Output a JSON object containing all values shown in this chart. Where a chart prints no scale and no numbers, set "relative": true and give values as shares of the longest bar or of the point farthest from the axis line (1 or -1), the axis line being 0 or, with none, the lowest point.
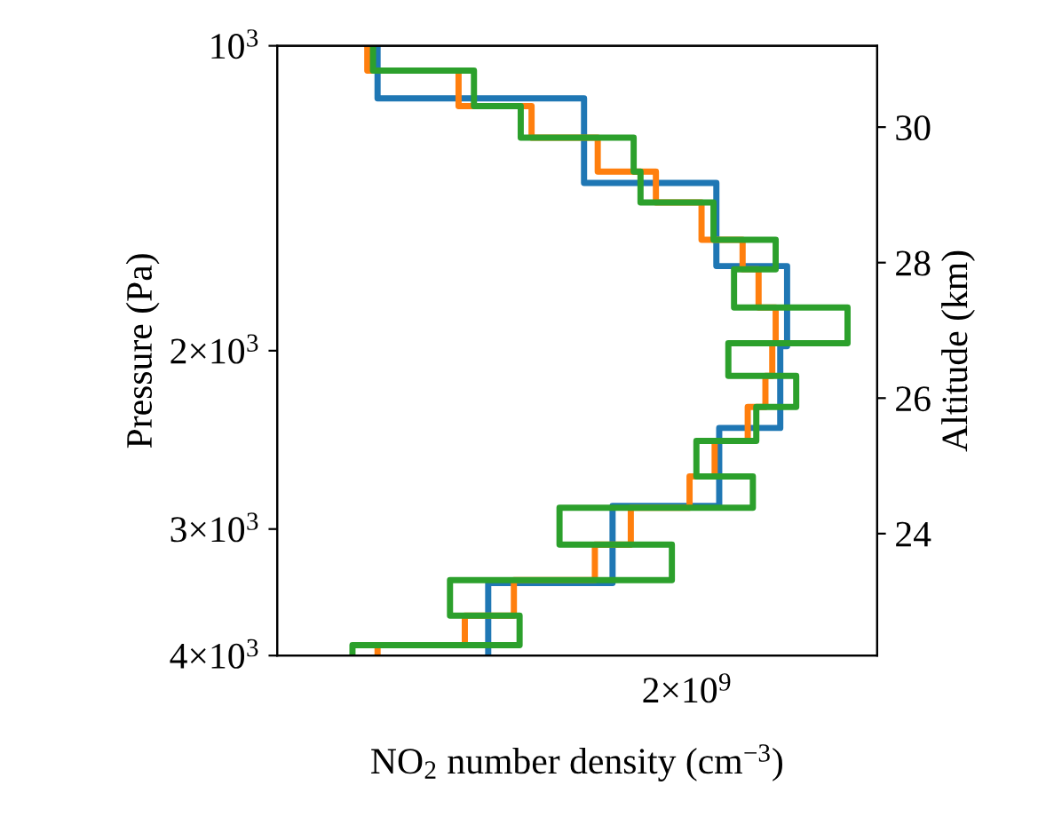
{
  "chart_data": {
    "type": "step",
    "orientation": "horizontal",
    "xlabel": "NO$_{2}$ number density (cm$^{−3}$)",
    "ylabel": "Pressure (Pa)",
    "y2label": "Altitude (km)",
    "relative": true,
    "log": "y",
    "annotations": [
      "2×10$^{9}$"
    ],
    "ylim": [
      4000,
      1000
    ],
    "yticks": [
      {
        "value": 1000,
        "label": "10$^{3}$"
      },
      {
        "value": 2000,
        "label": "2×10$^{3}$"
      },
      {
        "value": 3000,
        "label": "3×10$^{3}$"
      },
      {
        "value": 4000,
        "label": "4×10$^{3}$"
      }
    ],
    "y2lim": [
      22.2,
      31.2
    ],
    "y2ticks": [
      {
        "value": 24,
        "label": "24"
      },
      {
        "value": 26,
        "label": "26"
      },
      {
        "value": 28,
        "label": "28"
      },
      {
        "value": 30,
        "label": "30"
      }
    ],
    "grid": false,
    "series": [
      {
        "color": "#1f77b4",
        "values": [
          0.176,
          0.538,
          0.77,
          0.894,
          0.882,
          0.775,
          0.588,
          0.37,
          0.37
        ],
        "x": [
          1000,
          1127,
          1366,
          1650,
          1979,
          2384,
          2847,
          3392,
          4000
        ]
      },
      {
        "color": "#ff7f0e",
        "values": [
          0.158,
          0.318,
          0.446,
          0.562,
          0.664,
          0.744,
          0.816,
          0.844,
          0.874,
          0.868,
          0.856,
          0.825,
          0.767,
          0.723,
          0.62,
          0.557,
          0.415,
          0.329,
          0.176,
          0.176
        ],
        "x": [
          1000,
          1058,
          1147,
          1232,
          1331,
          1428,
          1554,
          1662,
          1813,
          1966,
          2118,
          2273,
          2455,
          2662,
          2858,
          3108,
          3370,
          3653,
          3906,
          4000
        ]
      },
      {
        "color": "#2ca02c",
        "values": [
          0.168,
          0.345,
          0.427,
          0.625,
          0.637,
          0.765,
          0.874,
          0.801,
          1,
          0.791,
          0.91,
          0.84,
          0.735,
          0.834,
          0.495,
          0.692,
          0.303,
          0.425,
          0.132,
          0.132
        ],
        "x": [
          1000,
          1058,
          1147,
          1232,
          1331,
          1428,
          1554,
          1662,
          1813,
          1966,
          2118,
          2273,
          2455,
          2662,
          2858,
          3108,
          3370,
          3653,
          3906,
          4000
        ]
      }
    ]
  }
}
